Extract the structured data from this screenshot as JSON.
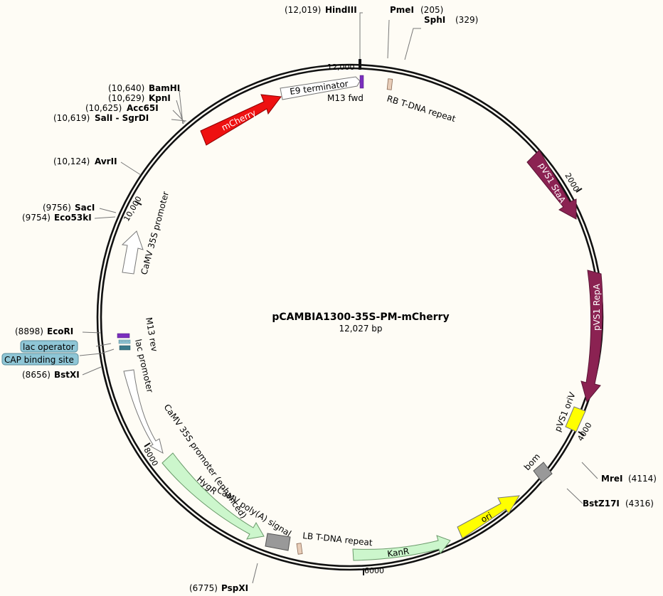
{
  "plasmid": {
    "name": "pCAMBIA1300-35S-PM-mCherry",
    "size_label": "12,027 bp"
  },
  "colors": {
    "background": "#fefcf5",
    "promoter": "#ffffff",
    "mcherry": "#ee1111",
    "resistance": "#ccf6cc",
    "origin": "#ffff00",
    "pvs1": "#8b2252",
    "lac_operator": "#8fc6d6",
    "cap_site": "#8fc6d6",
    "misc_box": "#999999",
    "repeat_box": "#e8cdb8"
  },
  "tick_labels": [
    "12,000",
    "2000",
    "4000",
    "6000",
    "8000",
    "10,000"
  ],
  "restriction_sites": [
    {
      "name": "HindIII",
      "pos": "(12,019)"
    },
    {
      "name": "PmeI",
      "pos": "(205)"
    },
    {
      "name": "SphI",
      "pos": "(329)"
    },
    {
      "name": "BamHI",
      "pos": "(10,640)"
    },
    {
      "name": "KpnI",
      "pos": "(10,629)"
    },
    {
      "name": "Acc65I",
      "pos": "(10,625)"
    },
    {
      "name": "SalI - SgrDI",
      "pos": "(10,619)"
    },
    {
      "name": "AvrII",
      "pos": "(10,124)"
    },
    {
      "name": "SacI",
      "pos": "(9756)"
    },
    {
      "name": "Eco53kI",
      "pos": "(9754)"
    },
    {
      "name": "EcoRI",
      "pos": "(8898)"
    },
    {
      "name": "BstXI",
      "pos": "(8656)"
    },
    {
      "name": "MreI",
      "pos": "(4114)"
    },
    {
      "name": "BstZ17I",
      "pos": "(4316)"
    },
    {
      "name": "PspXI",
      "pos": "(6775)"
    }
  ],
  "boxed_sites": [
    "lac operator",
    "CAP binding site"
  ],
  "features": [
    {
      "name": "E9 terminator"
    },
    {
      "name": "M13 fwd"
    },
    {
      "name": "RB T-DNA repeat"
    },
    {
      "name": "mCherry"
    },
    {
      "name": "pVS1 StaA"
    },
    {
      "name": "pVS1 RepA"
    },
    {
      "name": "pVS1 oriV"
    },
    {
      "name": "bom"
    },
    {
      "name": "ori"
    },
    {
      "name": "KanR"
    },
    {
      "name": "LB T-DNA repeat"
    },
    {
      "name": "CaMV poly(A) signal"
    },
    {
      "name": "HygR"
    },
    {
      "name": "CaMV 35S promoter (enhanced)"
    },
    {
      "name": "lac promoter"
    },
    {
      "name": "M13 rev"
    },
    {
      "name": "CaMV 35S promoter"
    }
  ]
}
